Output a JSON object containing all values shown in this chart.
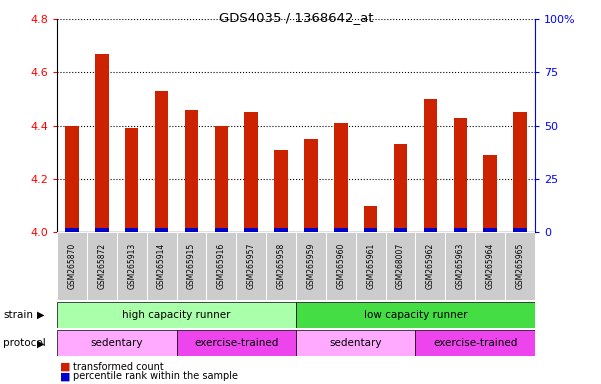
{
  "title": "GDS4035 / 1368642_at",
  "samples": [
    "GSM265870",
    "GSM265872",
    "GSM265913",
    "GSM265914",
    "GSM265915",
    "GSM265916",
    "GSM265957",
    "GSM265958",
    "GSM265959",
    "GSM265960",
    "GSM265961",
    "GSM268007",
    "GSM265962",
    "GSM265963",
    "GSM265964",
    "GSM265965"
  ],
  "transformed_count": [
    4.4,
    4.67,
    4.39,
    4.53,
    4.46,
    4.4,
    4.45,
    4.31,
    4.35,
    4.41,
    4.1,
    4.33,
    4.5,
    4.43,
    4.29,
    4.45
  ],
  "percentile_rank": [
    3.0,
    10.0,
    5.0,
    7.5,
    5.0,
    3.0,
    5.0,
    5.0,
    3.0,
    3.0,
    3.0,
    5.0,
    7.5,
    3.0,
    5.0,
    7.5
  ],
  "y_min": 4.0,
  "y_max": 4.8,
  "y_ticks": [
    4.0,
    4.2,
    4.4,
    4.6,
    4.8
  ],
  "right_y_ticks": [
    0,
    25,
    50,
    75,
    100
  ],
  "right_y_labels": [
    "0",
    "25",
    "50",
    "75",
    "100%"
  ],
  "bar_color_red": "#cc2200",
  "bar_color_blue": "#0000cc",
  "strain_labels": [
    "high capacity runner",
    "low capacity runner"
  ],
  "strain_ranges": [
    [
      0,
      7
    ],
    [
      8,
      15
    ]
  ],
  "strain_color_left": "#aaffaa",
  "strain_color_right": "#44dd44",
  "protocol_labels": [
    "sedentary",
    "exercise-trained",
    "sedentary",
    "exercise-trained"
  ],
  "protocol_ranges": [
    [
      0,
      3
    ],
    [
      4,
      7
    ],
    [
      8,
      11
    ],
    [
      12,
      15
    ]
  ],
  "protocol_color_light": "#ffaaff",
  "protocol_color_dark": "#ee44ee",
  "background_color": "#ffffff",
  "tick_bg": "#cccccc",
  "bar_width": 0.45
}
